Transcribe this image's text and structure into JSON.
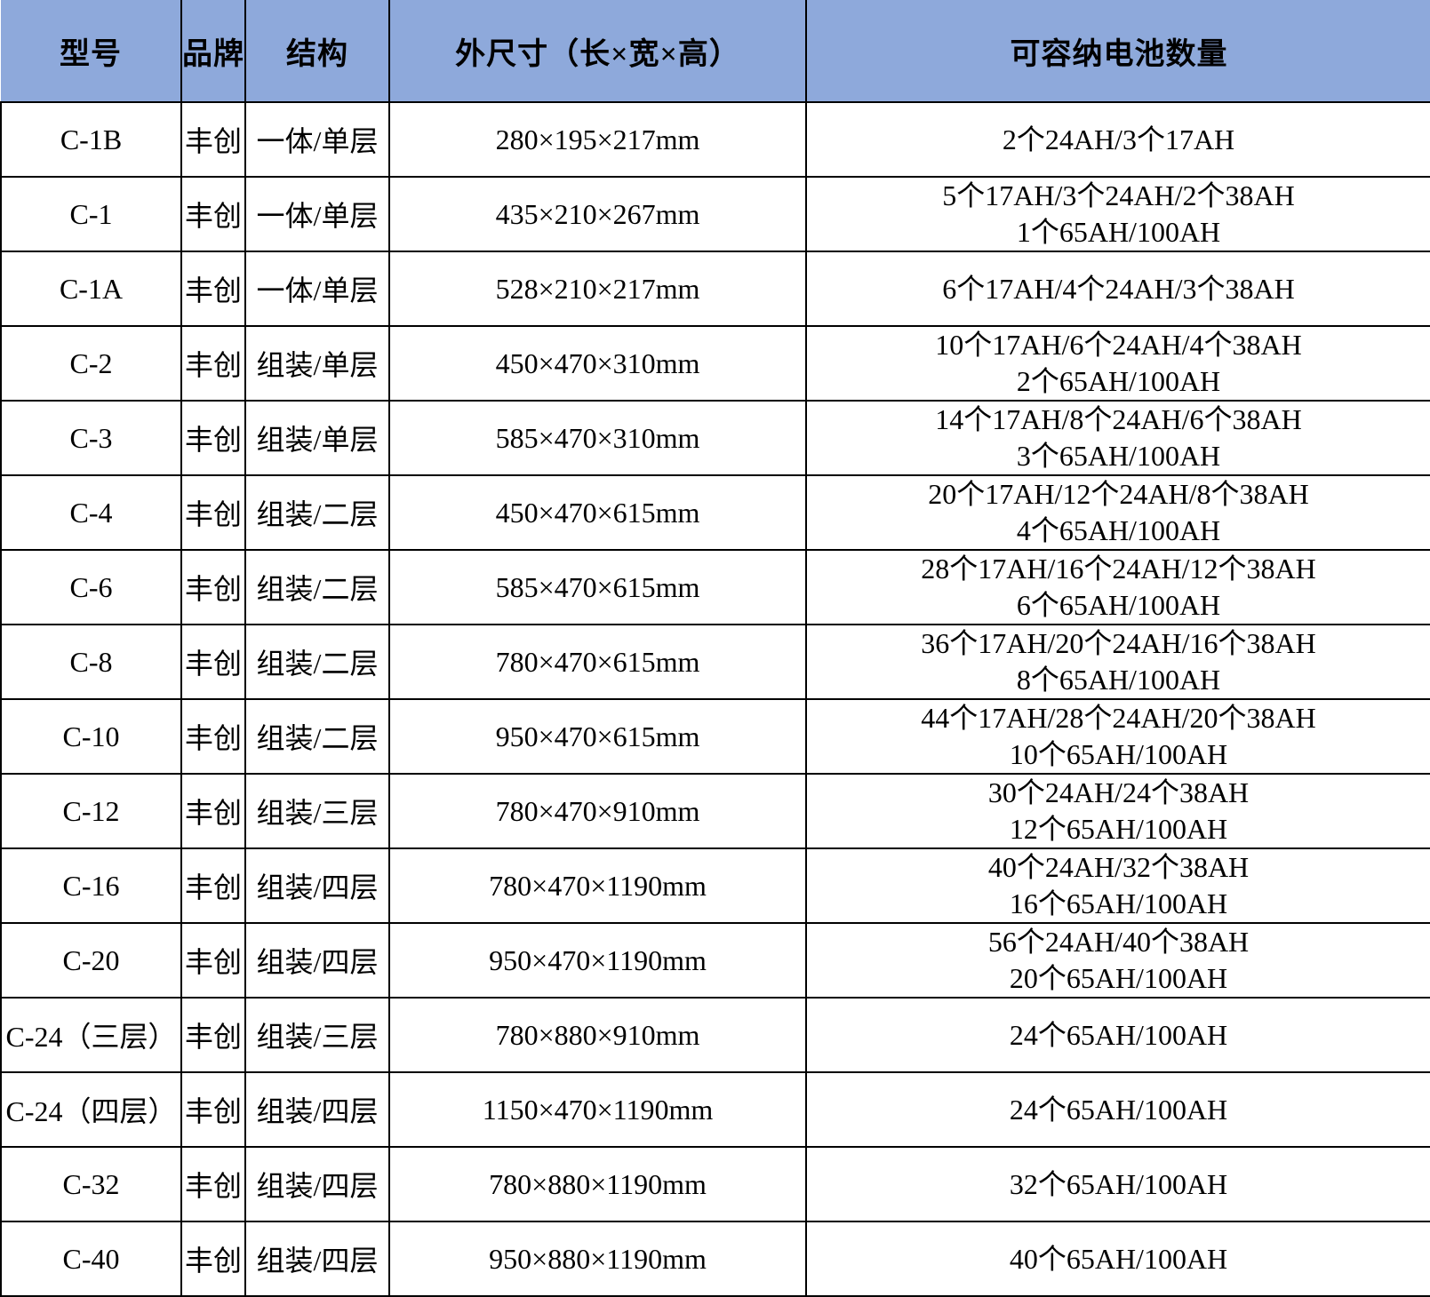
{
  "colors": {
    "header_bg": "#8EA9DB",
    "border": "#000000",
    "row_bg": "#FFFFFF",
    "text": "#000000"
  },
  "table": {
    "columns": [
      "型号",
      "品牌",
      "结构",
      "外尺寸（长×宽×高）",
      "可容纳电池数量"
    ],
    "rows": [
      {
        "model": "C-1B",
        "brand": "丰创",
        "structure": "一体/单层",
        "dimensions": "280×195×217mm",
        "battery_lines": [
          "2个24AH/3个17AH"
        ]
      },
      {
        "model": "C-1",
        "brand": "丰创",
        "structure": "一体/单层",
        "dimensions": "435×210×267mm",
        "battery_lines": [
          "5个17AH/3个24AH/2个38AH",
          "1个65AH/100AH"
        ]
      },
      {
        "model": "C-1A",
        "brand": "丰创",
        "structure": "一体/单层",
        "dimensions": "528×210×217mm",
        "battery_lines": [
          "6个17AH/4个24AH/3个38AH"
        ]
      },
      {
        "model": "C-2",
        "brand": "丰创",
        "structure": "组装/单层",
        "dimensions": "450×470×310mm",
        "battery_lines": [
          "10个17AH/6个24AH/4个38AH",
          "2个65AH/100AH"
        ]
      },
      {
        "model": "C-3",
        "brand": "丰创",
        "structure": "组装/单层",
        "dimensions": "585×470×310mm",
        "battery_lines": [
          "14个17AH/8个24AH/6个38AH",
          "3个65AH/100AH"
        ]
      },
      {
        "model": "C-4",
        "brand": "丰创",
        "structure": "组装/二层",
        "dimensions": "450×470×615mm",
        "battery_lines": [
          "20个17AH/12个24AH/8个38AH",
          "4个65AH/100AH"
        ]
      },
      {
        "model": "C-6",
        "brand": "丰创",
        "structure": "组装/二层",
        "dimensions": "585×470×615mm",
        "battery_lines": [
          "28个17AH/16个24AH/12个38AH",
          "6个65AH/100AH"
        ]
      },
      {
        "model": "C-8",
        "brand": "丰创",
        "structure": "组装/二层",
        "dimensions": "780×470×615mm",
        "battery_lines": [
          "36个17AH/20个24AH/16个38AH",
          "8个65AH/100AH"
        ]
      },
      {
        "model": "C-10",
        "brand": "丰创",
        "structure": "组装/二层",
        "dimensions": "950×470×615mm",
        "battery_lines": [
          "44个17AH/28个24AH/20个38AH",
          "10个65AH/100AH"
        ]
      },
      {
        "model": "C-12",
        "brand": "丰创",
        "structure": "组装/三层",
        "dimensions": "780×470×910mm",
        "battery_lines": [
          "30个24AH/24个38AH",
          "12个65AH/100AH"
        ]
      },
      {
        "model": "C-16",
        "brand": "丰创",
        "structure": "组装/四层",
        "dimensions": "780×470×1190mm",
        "battery_lines": [
          "40个24AH/32个38AH",
          "16个65AH/100AH"
        ]
      },
      {
        "model": "C-20",
        "brand": "丰创",
        "structure": "组装/四层",
        "dimensions": "950×470×1190mm",
        "battery_lines": [
          "56个24AH/40个38AH",
          "20个65AH/100AH"
        ]
      },
      {
        "model": "C-24（三层）",
        "brand": "丰创",
        "structure": "组装/三层",
        "dimensions": "780×880×910mm",
        "battery_lines": [
          "24个65AH/100AH"
        ]
      },
      {
        "model": "C-24（四层）",
        "brand": "丰创",
        "structure": "组装/四层",
        "dimensions": "1150×470×1190mm",
        "battery_lines": [
          "24个65AH/100AH"
        ]
      },
      {
        "model": "C-32",
        "brand": "丰创",
        "structure": "组装/四层",
        "dimensions": "780×880×1190mm",
        "battery_lines": [
          "32个65AH/100AH"
        ]
      },
      {
        "model": "C-40",
        "brand": "丰创",
        "structure": "组装/四层",
        "dimensions": "950×880×1190mm",
        "battery_lines": [
          "40个65AH/100AH"
        ]
      }
    ]
  }
}
